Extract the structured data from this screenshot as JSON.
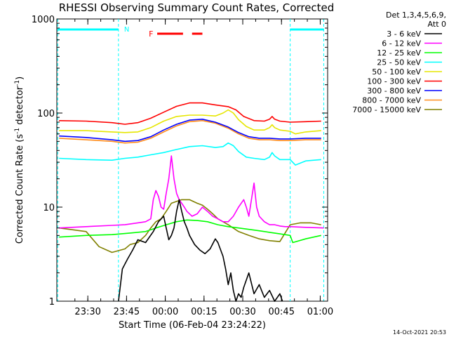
{
  "chart_data": {
    "type": "line",
    "title": "RHESSI Observing Summary Count Rates, Corrected",
    "xlabel": "Start Time (06-Feb-04 23:24:22)",
    "ylabel_parts": {
      "main": "Corrected Count Rate (s",
      "sup1": "-1",
      "mid": " detector",
      "sup2": "-1",
      "end": ")"
    },
    "yscale": "log",
    "ylim": [
      1,
      1000
    ],
    "xlim": [
      -6.3667,
      98.5
    ],
    "x_ticks": [
      {
        "t": 5.6333,
        "label": "23:30"
      },
      {
        "t": 20.6333,
        "label": "23:45"
      },
      {
        "t": 35.6333,
        "label": "00:00"
      },
      {
        "t": 50.6333,
        "label": "00:15"
      },
      {
        "t": 65.6333,
        "label": "00:30"
      },
      {
        "t": 80.6333,
        "label": "00:45"
      },
      {
        "t": 95.6333,
        "label": "01:00"
      }
    ],
    "y_ticks": [
      {
        "v": 1,
        "label": "1"
      },
      {
        "v": 10,
        "label": "10"
      },
      {
        "v": 100,
        "label": "100"
      },
      {
        "v": 1000,
        "label": "1000"
      }
    ],
    "night_intervals": [
      [
        -6.0,
        17.5
      ],
      [
        84.0,
        97.0
      ]
    ],
    "night_label": "N",
    "flare_label": "F",
    "flare_intervals": [
      [
        32.5,
        42.5
      ],
      [
        46.0,
        50.0
      ]
    ],
    "legend_header": [
      "Det 1,3,4,5,6,9,",
      "Att 0"
    ],
    "series": [
      {
        "name": "3 - 6 keV",
        "color": "#000000",
        "values": [
          [
            17.5,
            1
          ],
          [
            19,
            2.2
          ],
          [
            21,
            2.8
          ],
          [
            23,
            3.5
          ],
          [
            25,
            4.5
          ],
          [
            28,
            4.2
          ],
          [
            31,
            5.5
          ],
          [
            33,
            7
          ],
          [
            35,
            8
          ],
          [
            36,
            6
          ],
          [
            37,
            4.5
          ],
          [
            38,
            5
          ],
          [
            39,
            6
          ],
          [
            40,
            9
          ],
          [
            41,
            12
          ],
          [
            42,
            9
          ],
          [
            43,
            7
          ],
          [
            44,
            6
          ],
          [
            45,
            5
          ],
          [
            47,
            4
          ],
          [
            49,
            3.5
          ],
          [
            51,
            3.2
          ],
          [
            53,
            3.6
          ],
          [
            55,
            4.6
          ],
          [
            56,
            4.2
          ],
          [
            58,
            3
          ],
          [
            59,
            2.2
          ],
          [
            60,
            1.5
          ],
          [
            61,
            2
          ],
          [
            62,
            1.3
          ],
          [
            63,
            1
          ],
          [
            64,
            1.2
          ],
          [
            65,
            1.1
          ],
          [
            66,
            1.4
          ],
          [
            68,
            2
          ],
          [
            70,
            1.2
          ],
          [
            72,
            1.5
          ],
          [
            74,
            1.1
          ],
          [
            76,
            1.3
          ],
          [
            78,
            1
          ],
          [
            80,
            1.2
          ],
          [
            81,
            1
          ]
        ]
      },
      {
        "name": "6 - 12 keV",
        "color": "#ff00ff",
        "values": [
          [
            -5.5,
            6
          ],
          [
            5,
            6.2
          ],
          [
            15,
            6.4
          ],
          [
            20,
            6.5
          ],
          [
            25,
            6.8
          ],
          [
            28,
            7
          ],
          [
            30,
            7.5
          ],
          [
            31,
            12
          ],
          [
            32,
            15
          ],
          [
            33,
            13
          ],
          [
            34,
            10
          ],
          [
            35,
            9.5
          ],
          [
            36,
            14
          ],
          [
            37,
            20
          ],
          [
            38,
            35
          ],
          [
            39,
            20
          ],
          [
            40,
            14
          ],
          [
            41,
            12
          ],
          [
            42,
            11
          ],
          [
            43,
            10
          ],
          [
            44,
            9
          ],
          [
            46,
            8
          ],
          [
            48,
            8.5
          ],
          [
            50,
            10
          ],
          [
            52,
            9
          ],
          [
            54,
            8
          ],
          [
            56,
            7.5
          ],
          [
            58,
            7
          ],
          [
            60,
            7
          ],
          [
            62,
            8
          ],
          [
            64,
            10
          ],
          [
            66,
            12
          ],
          [
            67,
            10
          ],
          [
            68,
            8
          ],
          [
            69,
            12
          ],
          [
            70,
            18
          ],
          [
            71,
            10
          ],
          [
            72,
            8
          ],
          [
            74,
            7
          ],
          [
            76,
            6.5
          ],
          [
            78,
            6.5
          ],
          [
            80,
            6.3
          ],
          [
            82,
            6.2
          ],
          [
            84,
            6.2
          ],
          [
            90,
            6.1
          ],
          [
            97,
            6
          ]
        ]
      },
      {
        "name": "12 - 25 keV",
        "color": "#00ff00",
        "values": [
          [
            -5.5,
            4.8
          ],
          [
            5,
            5
          ],
          [
            15,
            5.1
          ],
          [
            22,
            5.3
          ],
          [
            28,
            5.5
          ],
          [
            32,
            6
          ],
          [
            36,
            6.5
          ],
          [
            40,
            7
          ],
          [
            44,
            7.3
          ],
          [
            48,
            7.2
          ],
          [
            52,
            7
          ],
          [
            56,
            6.5
          ],
          [
            60,
            6.2
          ],
          [
            64,
            6
          ],
          [
            68,
            5.8
          ],
          [
            72,
            5.6
          ],
          [
            76,
            5.4
          ],
          [
            80,
            5.2
          ],
          [
            84,
            5
          ],
          [
            85,
            4.2
          ],
          [
            90,
            4.6
          ],
          [
            96,
            5
          ]
        ]
      },
      {
        "name": "25 - 50 keV",
        "color": "#00ffff",
        "values": [
          [
            -5.5,
            33
          ],
          [
            5,
            32
          ],
          [
            15,
            31.5
          ],
          [
            20,
            33
          ],
          [
            25,
            34
          ],
          [
            30,
            36
          ],
          [
            35,
            38
          ],
          [
            40,
            41
          ],
          [
            45,
            44
          ],
          [
            50,
            45
          ],
          [
            55,
            43
          ],
          [
            58,
            44
          ],
          [
            60,
            48
          ],
          [
            62,
            45
          ],
          [
            64,
            39
          ],
          [
            67,
            34
          ],
          [
            70,
            33
          ],
          [
            74,
            32
          ],
          [
            76,
            34
          ],
          [
            77,
            38
          ],
          [
            78,
            35
          ],
          [
            80,
            32
          ],
          [
            84,
            32
          ],
          [
            86,
            28
          ],
          [
            90,
            31
          ],
          [
            96,
            32
          ]
        ]
      },
      {
        "name": "50 - 100 keV",
        "color": "#e6e600",
        "values": [
          [
            -5.5,
            65
          ],
          [
            5,
            65
          ],
          [
            15,
            63
          ],
          [
            20,
            62
          ],
          [
            25,
            63
          ],
          [
            30,
            70
          ],
          [
            35,
            82
          ],
          [
            40,
            92
          ],
          [
            45,
            95
          ],
          [
            50,
            95
          ],
          [
            55,
            93
          ],
          [
            58,
            100
          ],
          [
            60,
            108
          ],
          [
            62,
            100
          ],
          [
            64,
            85
          ],
          [
            67,
            72
          ],
          [
            70,
            66
          ],
          [
            74,
            66
          ],
          [
            76,
            70
          ],
          [
            77,
            75
          ],
          [
            78,
            70
          ],
          [
            80,
            66
          ],
          [
            84,
            64
          ],
          [
            86,
            60
          ],
          [
            90,
            63
          ],
          [
            96,
            65
          ]
        ]
      },
      {
        "name": "100 - 300 keV",
        "color": "#ff0000",
        "values": [
          [
            -5.5,
            83
          ],
          [
            5,
            82
          ],
          [
            15,
            79
          ],
          [
            20,
            76
          ],
          [
            25,
            79
          ],
          [
            30,
            88
          ],
          [
            35,
            102
          ],
          [
            40,
            118
          ],
          [
            45,
            128
          ],
          [
            50,
            128
          ],
          [
            55,
            122
          ],
          [
            60,
            117
          ],
          [
            63,
            108
          ],
          [
            66,
            92
          ],
          [
            70,
            83
          ],
          [
            74,
            82
          ],
          [
            76,
            86
          ],
          [
            77,
            92
          ],
          [
            78,
            86
          ],
          [
            80,
            82
          ],
          [
            84,
            80
          ],
          [
            90,
            81
          ],
          [
            96,
            82
          ]
        ]
      },
      {
        "name": "300 - 800 keV",
        "color": "#0000ff",
        "values": [
          [
            -5.5,
            57
          ],
          [
            5,
            55
          ],
          [
            15,
            52
          ],
          [
            20,
            50
          ],
          [
            25,
            51
          ],
          [
            30,
            56
          ],
          [
            35,
            66
          ],
          [
            40,
            76
          ],
          [
            45,
            84
          ],
          [
            50,
            86
          ],
          [
            55,
            80
          ],
          [
            60,
            71
          ],
          [
            64,
            62
          ],
          [
            68,
            56
          ],
          [
            72,
            54
          ],
          [
            76,
            54
          ],
          [
            80,
            53
          ],
          [
            84,
            53
          ],
          [
            90,
            54
          ],
          [
            96,
            54
          ]
        ]
      },
      {
        "name": "800 - 7000 keV",
        "color": "#ff8c1a",
        "values": [
          [
            -5.5,
            54
          ],
          [
            5,
            52
          ],
          [
            15,
            50
          ],
          [
            20,
            48
          ],
          [
            25,
            49
          ],
          [
            30,
            54
          ],
          [
            35,
            63
          ],
          [
            40,
            73
          ],
          [
            45,
            81
          ],
          [
            50,
            83
          ],
          [
            55,
            78
          ],
          [
            60,
            69
          ],
          [
            64,
            60
          ],
          [
            68,
            54
          ],
          [
            72,
            52
          ],
          [
            76,
            52
          ],
          [
            80,
            51
          ],
          [
            84,
            51
          ],
          [
            90,
            52
          ],
          [
            96,
            52
          ]
        ]
      },
      {
        "name": "7000 - 15000 keV",
        "color": "#808000",
        "values": [
          [
            -5.5,
            6
          ],
          [
            5,
            5.5
          ],
          [
            10,
            3.8
          ],
          [
            15,
            3.3
          ],
          [
            20,
            3.6
          ],
          [
            22,
            4
          ],
          [
            25,
            4.2
          ],
          [
            28,
            5
          ],
          [
            30,
            6
          ],
          [
            32,
            7
          ],
          [
            34,
            7.5
          ],
          [
            36,
            9
          ],
          [
            38,
            11
          ],
          [
            40,
            11.5
          ],
          [
            42,
            12
          ],
          [
            45,
            12
          ],
          [
            48,
            11
          ],
          [
            50,
            10.5
          ],
          [
            52,
            9.5
          ],
          [
            54,
            8.5
          ],
          [
            56,
            7.5
          ],
          [
            60,
            6.5
          ],
          [
            64,
            5.5
          ],
          [
            68,
            5
          ],
          [
            72,
            4.6
          ],
          [
            76,
            4.4
          ],
          [
            80,
            4.3
          ],
          [
            84,
            6.5
          ],
          [
            88,
            6.8
          ],
          [
            92,
            6.8
          ],
          [
            96,
            6.5
          ]
        ]
      }
    ],
    "footer": "14-Oct-2021 20:53"
  }
}
